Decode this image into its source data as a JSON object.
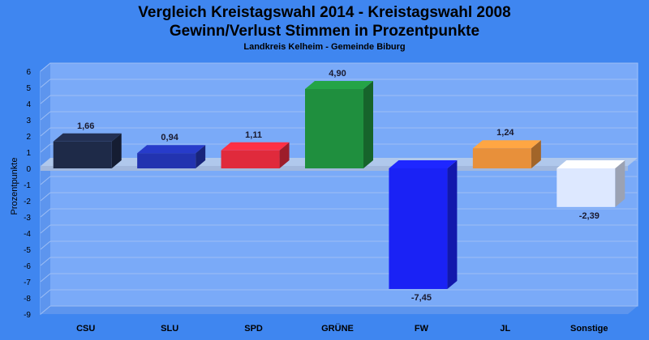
{
  "chart_data": {
    "type": "bar",
    "title": "Vergleich Kreistagswahl 2014 - Kreistagswahl 2008",
    "title_line2": "Gewinn/Verlust Stimmen in Prozentpunkte",
    "subtitle": "Landkreis Kelheim - Gemeinde Biburg",
    "xlabel": "",
    "ylabel": "Prozentpunkte",
    "ylim": [
      -9,
      6
    ],
    "yticks": [
      6,
      5,
      4,
      3,
      2,
      1,
      0,
      -1,
      -2,
      -3,
      -4,
      -5,
      -6,
      -7,
      -8,
      -9
    ],
    "grid": true,
    "categories": [
      "CSU",
      "SLU",
      "SPD",
      "GRÜNE",
      "FW",
      "JL",
      "Sonstige"
    ],
    "values": [
      1.66,
      0.94,
      1.11,
      4.9,
      -7.45,
      1.24,
      -2.39
    ],
    "value_labels": [
      "1,66",
      "0,94",
      "1,11",
      "4,90",
      "-7,45",
      "1,24",
      "-2,39"
    ],
    "colors": [
      "#1e2a48",
      "#2233b0",
      "#e02a3c",
      "#1f8f3e",
      "#1a22f5",
      "#e8903a",
      "#dde8ff"
    ],
    "background": "#3f86f0",
    "plot_background": "#7aaaf8"
  }
}
